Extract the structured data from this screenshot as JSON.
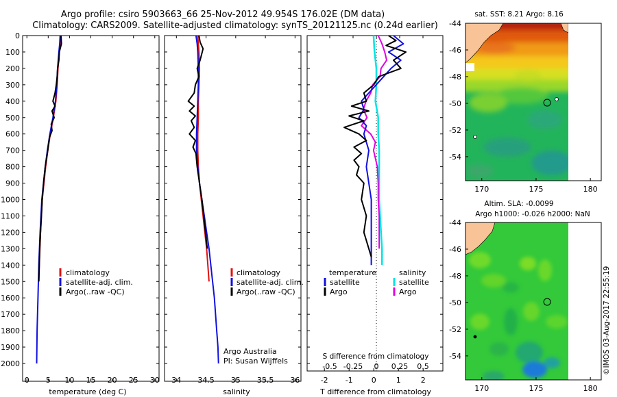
{
  "header": {
    "title_line1": "Argo profile: csiro 5903663_66 25-Nov-2012 49.954S 176.02E (DM data)",
    "title_line2": "Climatology: CARS2009. Satellite-adjusted climatology: synTS_20121125.nc (0.24d earlier)"
  },
  "credits": {
    "program": "Argo Australia",
    "pi": "PI: Susan Wijffels",
    "stamp": "©IMOS 03-Aug-2017 22:55:19"
  },
  "colors": {
    "climatology": "#e01010",
    "satellite": "#1010e0",
    "argo": "#000000",
    "salinity_satellite": "#00e5e5",
    "salinity_argo": "#e000e0"
  },
  "chart_data": [
    {
      "type": "line",
      "name": "temperature",
      "xlabel": "temperature (deg C)",
      "ylabel": "depth",
      "xlim": [
        -1,
        31
      ],
      "ylim": [
        2050,
        0
      ],
      "xticks": [
        "0",
        "5",
        "10",
        "15",
        "20",
        "25",
        "30"
      ],
      "yticks": [
        "0",
        "100",
        "200",
        "300",
        "400",
        "500",
        "600",
        "700",
        "800",
        "900",
        "1000",
        "1100",
        "1200",
        "1300",
        "1400",
        "1500",
        "1600",
        "1700",
        "1800",
        "1900",
        "2000"
      ],
      "legend": [
        "climatology",
        "satellite-adj. clim.",
        "Argo(..raw -QC)"
      ],
      "series": [
        {
          "name": "climatology",
          "depth": [
            0,
            50,
            100,
            200,
            300,
            400,
            500,
            600,
            700,
            800,
            900,
            1000,
            1200,
            1400,
            1500
          ],
          "values": [
            7.9,
            7.8,
            7.6,
            7.3,
            7.1,
            6.8,
            6.2,
            5.5,
            4.9,
            4.4,
            4.0,
            3.6,
            3.2,
            2.9,
            2.8
          ]
        },
        {
          "name": "satellite-adj. clim.",
          "depth": [
            0,
            50,
            100,
            200,
            300,
            400,
            500,
            600,
            700,
            800,
            900,
            1000,
            1200,
            1400,
            1600,
            1800,
            2000
          ],
          "values": [
            7.8,
            7.7,
            7.5,
            7.2,
            7.0,
            6.7,
            6.1,
            5.4,
            4.8,
            4.3,
            3.9,
            3.5,
            3.1,
            2.8,
            2.6,
            2.4,
            2.3
          ]
        },
        {
          "name": "Argo(..raw -QC)",
          "depth": [
            0,
            50,
            100,
            150,
            200,
            250,
            300,
            350,
            400,
            430,
            460,
            500,
            540,
            580,
            620,
            660,
            700,
            750,
            800,
            850,
            900,
            1000,
            1100,
            1200,
            1300,
            1400,
            1500
          ],
          "values": [
            8.0,
            8.1,
            7.6,
            7.5,
            7.2,
            7.1,
            6.9,
            6.6,
            6.1,
            6.6,
            5.9,
            6.4,
            5.7,
            5.9,
            5.3,
            5.1,
            4.9,
            4.6,
            4.3,
            4.1,
            3.9,
            3.6,
            3.4,
            3.2,
            3.0,
            2.9,
            2.8
          ]
        }
      ]
    },
    {
      "type": "line",
      "name": "salinity",
      "xlabel": "salinity",
      "xlim": [
        33.8,
        36.1
      ],
      "ylim": [
        2050,
        0
      ],
      "xticks": [
        "34",
        "34.5",
        "35",
        "35.5",
        "36"
      ],
      "legend": [
        "climatology",
        "satellite-adj. clim.",
        "Argo(..raw -QC)"
      ],
      "series": [
        {
          "name": "climatology",
          "depth": [
            0,
            50,
            100,
            200,
            300,
            400,
            500,
            600,
            700,
            800,
            900,
            1000,
            1100,
            1200,
            1300,
            1400,
            1500
          ],
          "values": [
            34.36,
            34.37,
            34.38,
            34.39,
            34.38,
            34.37,
            34.37,
            34.36,
            34.36,
            34.37,
            34.39,
            34.42,
            34.45,
            34.48,
            34.51,
            34.53,
            34.55
          ]
        },
        {
          "name": "satellite-adj. clim.",
          "depth": [
            0,
            50,
            100,
            200,
            300,
            400,
            500,
            600,
            700,
            800,
            900,
            1000,
            1100,
            1200,
            1300,
            1400,
            1500,
            1600,
            1700,
            1800,
            1900,
            2000
          ],
          "values": [
            34.33,
            34.35,
            34.36,
            34.37,
            34.37,
            34.36,
            34.35,
            34.34,
            34.34,
            34.36,
            34.39,
            34.43,
            34.47,
            34.51,
            34.55,
            34.58,
            34.61,
            34.64,
            34.66,
            34.68,
            34.7,
            34.71
          ]
        },
        {
          "name": "Argo(..raw -QC)",
          "depth": [
            0,
            40,
            80,
            150,
            200,
            250,
            300,
            350,
            400,
            430,
            460,
            490,
            520,
            560,
            600,
            640,
            680,
            720,
            760,
            800,
            900,
            1000,
            1100,
            1200,
            1300
          ],
          "values": [
            34.38,
            34.4,
            34.45,
            34.4,
            34.35,
            34.38,
            34.32,
            34.3,
            34.2,
            34.3,
            34.22,
            34.32,
            34.25,
            34.3,
            34.22,
            34.32,
            34.28,
            34.33,
            34.34,
            34.35,
            34.39,
            34.43,
            34.46,
            34.49,
            34.52
          ]
        }
      ]
    },
    {
      "type": "line",
      "name": "difference from climatology",
      "xlabel": "T difference from climatology",
      "xlabel_top": "S difference from climatology",
      "xlim_T": [
        -2.7,
        2.8
      ],
      "xticks_T": [
        "-2",
        "-1",
        "0",
        "1",
        "2"
      ],
      "xticks_S": [
        "-0.5",
        "-0.25",
        "0",
        "0.25",
        "0.5"
      ],
      "ylim": [
        2050,
        0
      ],
      "legend_temperature": {
        "header": "temperature",
        "items": [
          "satellite",
          "Argo"
        ]
      },
      "legend_salinity": {
        "header": "salinity",
        "items": [
          "satellite",
          "Argo"
        ]
      },
      "series": [
        {
          "name": "T satellite",
          "depth": [
            0,
            50,
            100,
            150,
            200,
            250,
            300,
            350,
            400,
            450,
            500,
            550,
            600,
            700,
            800,
            900,
            1000,
            1100,
            1200,
            1300,
            1400
          ],
          "values": [
            0.8,
            1.2,
            0.6,
            1.1,
            0.7,
            0.4,
            0.1,
            -0.2,
            -0.5,
            -0.4,
            -0.6,
            -0.3,
            -0.4,
            -0.2,
            -0.3,
            -0.2,
            -0.1,
            -0.1,
            -0.1,
            -0.1,
            -0.1
          ]
        },
        {
          "name": "T Argo",
          "depth": [
            0,
            30,
            60,
            100,
            150,
            200,
            250,
            300,
            350,
            400,
            430,
            460,
            490,
            520,
            560,
            600,
            640,
            680,
            720,
            760,
            800,
            850,
            900,
            1000,
            1100,
            1200,
            1300,
            1350
          ],
          "values": [
            0.6,
            0.9,
            0.5,
            1.3,
            0.8,
            1.1,
            0.2,
            0.0,
            -0.4,
            -0.3,
            -0.9,
            -0.2,
            -1.0,
            -0.4,
            -1.2,
            -0.6,
            -0.3,
            -0.8,
            -0.5,
            -0.8,
            -0.6,
            -0.7,
            -0.4,
            -0.5,
            -0.3,
            -0.4,
            -0.2,
            -0.1
          ]
        },
        {
          "name": "S satellite",
          "depth": [
            0,
            100,
            200,
            300,
            400,
            500,
            600,
            700,
            800,
            900,
            1000,
            1100,
            1200,
            1300,
            1400
          ],
          "values": [
            -0.03,
            -0.02,
            0.0,
            0.0,
            -0.01,
            0.02,
            0.02,
            0.03,
            0.03,
            0.03,
            0.03,
            0.04,
            0.05,
            0.06,
            0.06
          ]
        },
        {
          "name": "S Argo",
          "depth": [
            0,
            50,
            100,
            150,
            200,
            250,
            300,
            350,
            400,
            450,
            500,
            550,
            600,
            650,
            700,
            800,
            900,
            1000,
            1100,
            1200,
            1300
          ],
          "values": [
            0.02,
            0.06,
            0.09,
            0.11,
            0.05,
            0.04,
            -0.04,
            -0.06,
            -0.11,
            -0.14,
            -0.1,
            -0.16,
            -0.06,
            -0.01,
            -0.03,
            0.01,
            0.02,
            0.02,
            0.03,
            0.03,
            0.03
          ]
        }
      ]
    },
    {
      "type": "heatmap",
      "name": "sst map",
      "title": "sat. SST: 8.21  Argo: 8.16",
      "xticks": [
        "170",
        "175",
        "180"
      ],
      "yticks": [
        "-44",
        "-46",
        "-48",
        "-50",
        "-52",
        "-54"
      ],
      "xlim": [
        168.5,
        181
      ],
      "ylim": [
        -55.8,
        -44
      ],
      "marker": {
        "lon": 176.02,
        "lat": -49.954
      }
    },
    {
      "type": "heatmap",
      "name": "sla map",
      "title_line1": "Altim. SLA: -0.0099",
      "title_line2": "Argo h1000: -0.026  h2000: NaN",
      "xticks": [
        "170",
        "175",
        "180"
      ],
      "yticks": [
        "-44",
        "-46",
        "-48",
        "-50",
        "-52",
        "-54"
      ],
      "xlim": [
        168.5,
        181
      ],
      "ylim": [
        -55.8,
        -44
      ],
      "marker": {
        "lon": 176.02,
        "lat": -49.954
      }
    }
  ]
}
